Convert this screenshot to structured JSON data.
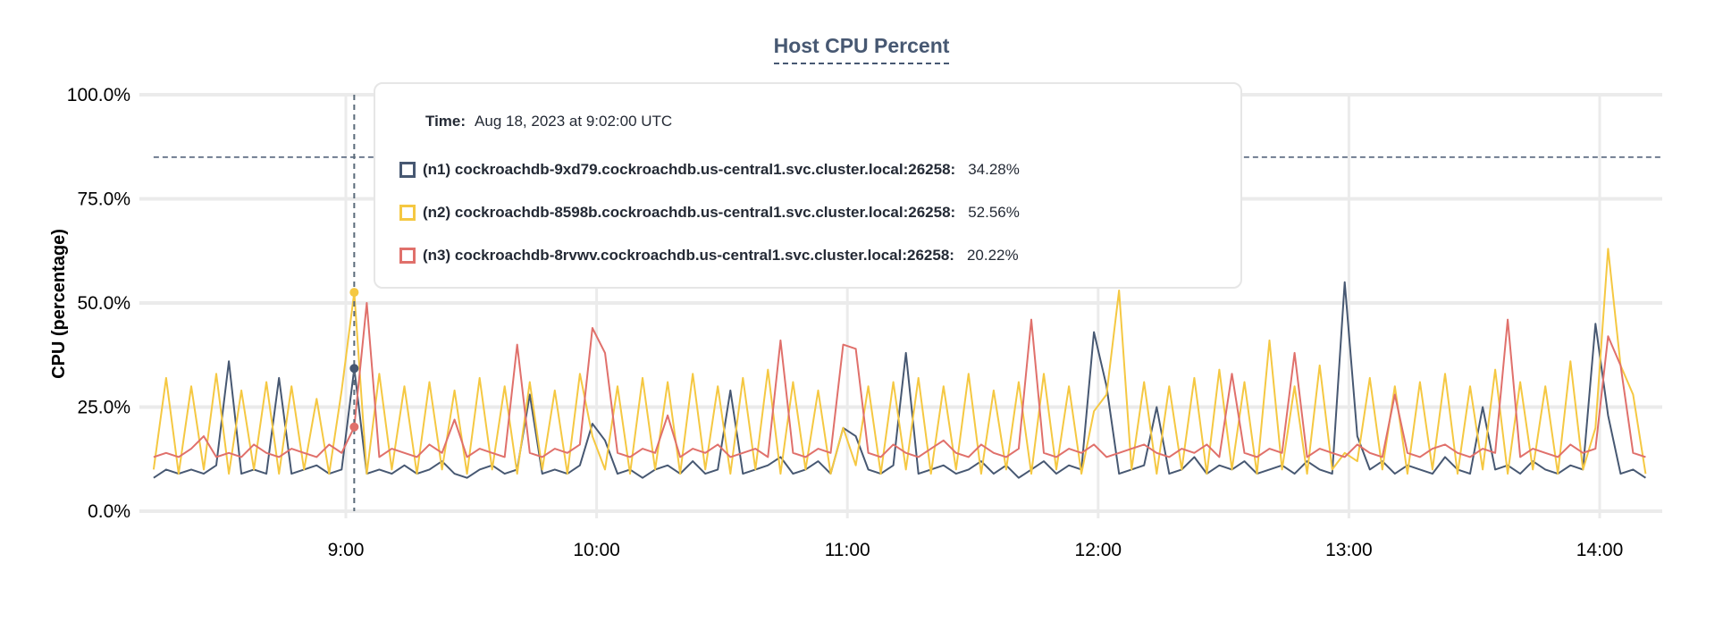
{
  "chart_data": {
    "type": "line",
    "title": "Host CPU Percent",
    "ylabel": "CPU (percentage)",
    "xlabel": "",
    "ylim": [
      0,
      100
    ],
    "yticks": [
      "0.0%",
      "25.0%",
      "50.0%",
      "75.0%",
      "100.0%"
    ],
    "ytick_values": [
      0,
      25,
      50,
      75,
      100
    ],
    "xticks": [
      "9:00",
      "10:00",
      "11:00",
      "12:00",
      "13:00",
      "14:00"
    ],
    "x_start": "08:14",
    "x_step_minutes": 3,
    "x_end": "14:11",
    "threshold": 85,
    "grid": true,
    "hover_time": "09:02",
    "series": [
      {
        "name": "(n1) cockroachdb-9xd79.cockroachdb.us-central1.svc.cluster.local:26258",
        "color": "#475872",
        "values": [
          8,
          10,
          9,
          10,
          9,
          11,
          36,
          9,
          10,
          9,
          32,
          9,
          10,
          11,
          9,
          10,
          34.28,
          9,
          10,
          9,
          11,
          9,
          10,
          12,
          9,
          8,
          10,
          11,
          9,
          10,
          28,
          9,
          10,
          9,
          11,
          21,
          17,
          9,
          10,
          8,
          10,
          11,
          9,
          12,
          9,
          10,
          29,
          9,
          10,
          11,
          13,
          9,
          10,
          12,
          9,
          20,
          18,
          10,
          9,
          11,
          38,
          9,
          10,
          11,
          9,
          10,
          12,
          9,
          11,
          8,
          10,
          12,
          9,
          11,
          10,
          43,
          30,
          9,
          10,
          11,
          25,
          9,
          10,
          13,
          9,
          11,
          10,
          12,
          9,
          10,
          11,
          9,
          12,
          10,
          9,
          55,
          18,
          10,
          12,
          9,
          11,
          10,
          9,
          13,
          10,
          9,
          25,
          10,
          11,
          9,
          12,
          10,
          9,
          11,
          10,
          45,
          23,
          9,
          10,
          8
        ]
      },
      {
        "name": "(n2) cockroachdb-8598b.cockroachdb.us-central1.svc.cluster.local:26258",
        "color": "#F5C842",
        "values": [
          10,
          32,
          9,
          30,
          10,
          33,
          9,
          29,
          10,
          31,
          9,
          30,
          10,
          27,
          9,
          29,
          52.56,
          9,
          33,
          10,
          30,
          9,
          31,
          10,
          29,
          9,
          32,
          10,
          30,
          9,
          31,
          10,
          29,
          9,
          33,
          18,
          10,
          30,
          9,
          32,
          10,
          31,
          9,
          33,
          10,
          30,
          9,
          32,
          10,
          34,
          9,
          31,
          10,
          29,
          9,
          20,
          11,
          30,
          9,
          31,
          10,
          32,
          9,
          30,
          10,
          33,
          9,
          29,
          10,
          31,
          9,
          33,
          10,
          30,
          9,
          24,
          28,
          53,
          10,
          31,
          9,
          30,
          10,
          32,
          9,
          34,
          10,
          31,
          9,
          41,
          10,
          30,
          9,
          35,
          10,
          14,
          12,
          32,
          10,
          30,
          9,
          31,
          10,
          33,
          9,
          30,
          10,
          34,
          9,
          31,
          10,
          30,
          9,
          36,
          10,
          20,
          63,
          35,
          28,
          9
        ]
      },
      {
        "name": "(n3) cockroachdb-8rvwv.cockroachdb.us-central1.svc.cluster.local:26258",
        "color": "#E0706B",
        "values": [
          13,
          14,
          13,
          15,
          18,
          13,
          14,
          13,
          16,
          14,
          13,
          15,
          14,
          13,
          16,
          14,
          20.22,
          50,
          13,
          15,
          14,
          13,
          16,
          14,
          22,
          13,
          15,
          14,
          13,
          40,
          14,
          13,
          15,
          14,
          16,
          44,
          38,
          14,
          13,
          15,
          14,
          23,
          13,
          15,
          14,
          16,
          13,
          14,
          15,
          13,
          41,
          14,
          13,
          15,
          14,
          40,
          39,
          14,
          13,
          16,
          14,
          13,
          15,
          17,
          14,
          13,
          16,
          14,
          13,
          15,
          46,
          14,
          13,
          15,
          14,
          16,
          13,
          14,
          15,
          16,
          14,
          13,
          15,
          14,
          16,
          13,
          33,
          14,
          13,
          15,
          14,
          38,
          13,
          15,
          14,
          13,
          16,
          14,
          13,
          28,
          14,
          13,
          15,
          16,
          14,
          13,
          15,
          14,
          46,
          13,
          15,
          14,
          13,
          16,
          14,
          15,
          42,
          35,
          14,
          13
        ]
      }
    ]
  },
  "tooltip": {
    "time_label": "Time:",
    "time_value": "Aug 18, 2023 at 9:02:00 UTC",
    "rows": [
      {
        "label": "(n1) cockroachdb-9xd79.cockroachdb.us-central1.svc.cluster.local:26258:",
        "value": "34.28%",
        "color": "#475872"
      },
      {
        "label": "(n2) cockroachdb-8598b.cockroachdb.us-central1.svc.cluster.local:26258:",
        "value": "52.56%",
        "color": "#F5C842"
      },
      {
        "label": "(n3) cockroachdb-8rvwv.cockroachdb.us-central1.svc.cluster.local:26258:",
        "value": "20.22%",
        "color": "#E0706B"
      }
    ]
  }
}
